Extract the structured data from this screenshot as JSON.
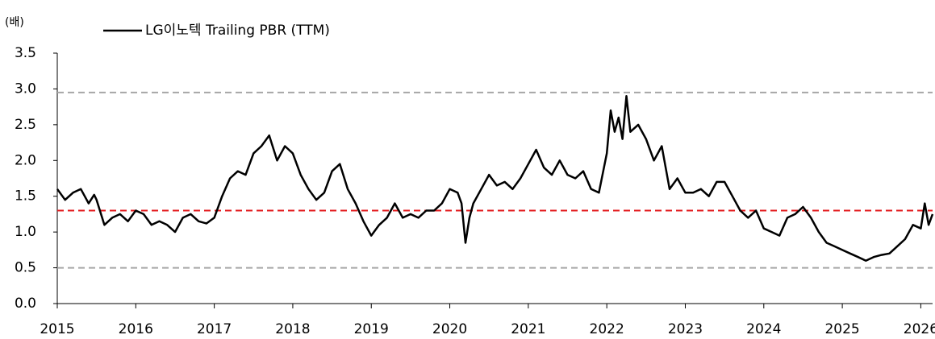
{
  "chart_data": {
    "type": "line",
    "y_unit": "(배)",
    "x": [
      2015.0,
      2015.1,
      2015.2,
      2015.3,
      2015.4,
      2015.47,
      2015.5,
      2015.6,
      2015.7,
      2015.8,
      2015.9,
      2016.0,
      2016.1,
      2016.2,
      2016.3,
      2016.4,
      2016.5,
      2016.6,
      2016.7,
      2016.8,
      2016.9,
      2017.0,
      2017.1,
      2017.2,
      2017.3,
      2017.4,
      2017.5,
      2017.6,
      2017.7,
      2017.8,
      2017.9,
      2018.0,
      2018.1,
      2018.2,
      2018.3,
      2018.4,
      2018.5,
      2018.6,
      2018.7,
      2018.8,
      2018.9,
      2019.0,
      2019.1,
      2019.2,
      2019.3,
      2019.4,
      2019.5,
      2019.6,
      2019.7,
      2019.8,
      2019.9,
      2020.0,
      2020.1,
      2020.15,
      2020.2,
      2020.25,
      2020.3,
      2020.4,
      2020.5,
      2020.6,
      2020.7,
      2020.8,
      2020.9,
      2021.0,
      2021.1,
      2021.2,
      2021.3,
      2021.4,
      2021.5,
      2021.6,
      2021.7,
      2021.8,
      2021.9,
      2022.0,
      2022.05,
      2022.1,
      2022.15,
      2022.2,
      2022.25,
      2022.3,
      2022.4,
      2022.5,
      2022.6,
      2022.7,
      2022.8,
      2022.9,
      2023.0,
      2023.1,
      2023.2,
      2023.3,
      2023.4,
      2023.5,
      2023.6,
      2023.7,
      2023.8,
      2023.9,
      2024.0,
      2024.1,
      2024.2,
      2024.3,
      2024.4,
      2024.5,
      2024.6,
      2024.7,
      2024.8,
      2024.9,
      2025.0,
      2025.1,
      2025.2,
      2025.3,
      2025.4,
      2025.5,
      2025.6,
      2025.7,
      2025.8,
      2025.9,
      2026.0,
      2026.05,
      2026.1,
      2026.15
    ],
    "series": [
      {
        "name": "LG이노텍 Trailing PBR (TTM)",
        "color": "#000000",
        "values": [
          1.6,
          1.45,
          1.55,
          1.6,
          1.4,
          1.52,
          1.45,
          1.1,
          1.2,
          1.25,
          1.15,
          1.3,
          1.25,
          1.1,
          1.15,
          1.1,
          1.0,
          1.2,
          1.25,
          1.15,
          1.12,
          1.2,
          1.5,
          1.75,
          1.85,
          1.8,
          2.1,
          2.2,
          2.35,
          2.0,
          2.2,
          2.1,
          1.8,
          1.6,
          1.45,
          1.55,
          1.85,
          1.95,
          1.6,
          1.4,
          1.15,
          0.95,
          1.1,
          1.2,
          1.4,
          1.2,
          1.25,
          1.2,
          1.3,
          1.3,
          1.4,
          1.6,
          1.55,
          1.4,
          0.85,
          1.2,
          1.4,
          1.6,
          1.8,
          1.65,
          1.7,
          1.6,
          1.75,
          1.95,
          2.15,
          1.9,
          1.8,
          2.0,
          1.8,
          1.75,
          1.85,
          1.6,
          1.55,
          2.1,
          2.7,
          2.4,
          2.6,
          2.3,
          2.9,
          2.4,
          2.5,
          2.3,
          2.0,
          2.2,
          1.6,
          1.75,
          1.55,
          1.55,
          1.6,
          1.5,
          1.7,
          1.7,
          1.5,
          1.3,
          1.2,
          1.3,
          1.05,
          1.0,
          0.95,
          1.2,
          1.25,
          1.35,
          1.2,
          1.0,
          0.85,
          0.8,
          0.75,
          0.7,
          0.65,
          0.6,
          0.65,
          0.68,
          0.7,
          0.8,
          0.9,
          1.1,
          1.05,
          1.4,
          1.1,
          1.25
        ]
      }
    ],
    "reference_lines": [
      {
        "value": 2.95,
        "color": "#a6a6a6"
      },
      {
        "value": 1.3,
        "color": "#e31a1c"
      },
      {
        "value": 0.5,
        "color": "#a6a6a6"
      }
    ],
    "xlim": [
      2015,
      2026.15
    ],
    "xticks": [
      2015,
      2016,
      2017,
      2018,
      2019,
      2020,
      2021,
      2022,
      2023,
      2024,
      2025,
      2026
    ],
    "ylim": [
      0,
      3.5
    ],
    "yticks": [
      {
        "value": 0,
        "label": "0.0"
      },
      0.5,
      {
        "value": 1,
        "label": "1.0"
      },
      1.5,
      {
        "value": 2,
        "label": "2.0"
      },
      2.5,
      {
        "value": 3,
        "label": "3.0"
      },
      3.5
    ],
    "legend": "top-left"
  }
}
